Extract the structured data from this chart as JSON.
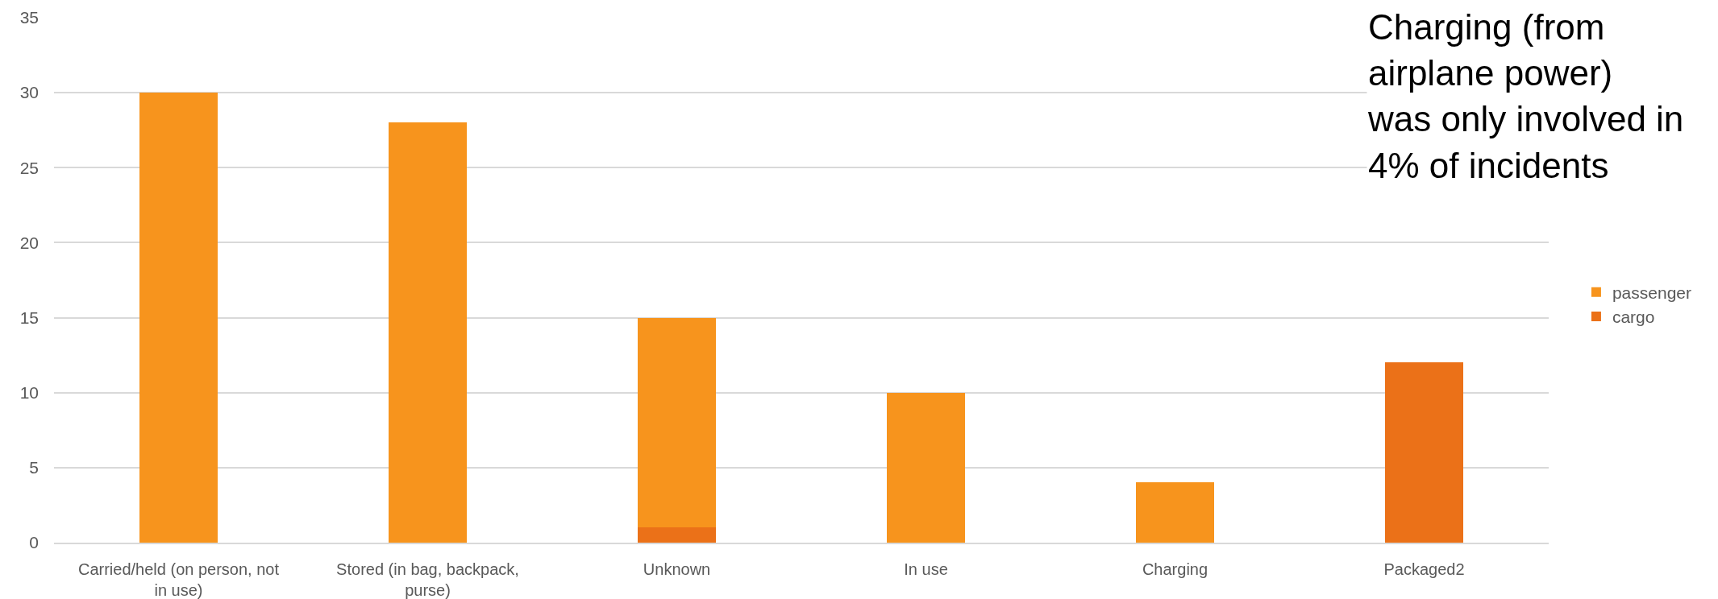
{
  "chart_data": {
    "type": "bar",
    "stacked": true,
    "categories": [
      "Carried/held (on person, not in use)",
      "Stored (in bag, backpack, purse)",
      "Unknown",
      "In use",
      "Charging",
      "Packaged2"
    ],
    "series": [
      {
        "name": "cargo",
        "color": "#eb7118",
        "values": [
          null,
          null,
          1,
          null,
          null,
          12
        ]
      },
      {
        "name": "passenger",
        "color": "#f7941d",
        "values": [
          30,
          28,
          14,
          10,
          4,
          null
        ]
      }
    ],
    "ylim": [
      0,
      35
    ],
    "yticks": [
      0,
      5,
      10,
      15,
      20,
      25,
      30,
      35
    ],
    "grid": "y",
    "legend": "right",
    "annotations": [
      "Charging (from\nairplane power)\nwas only involved in\n4% of incidents"
    ]
  }
}
